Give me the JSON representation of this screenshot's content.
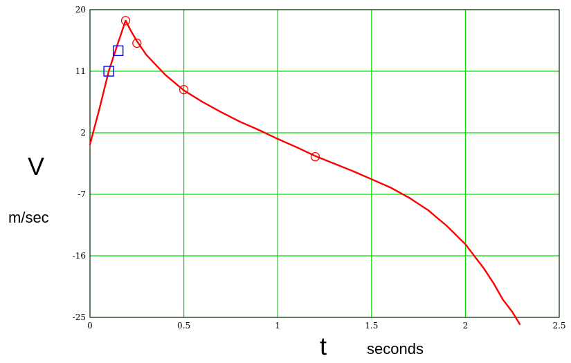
{
  "chart_data": {
    "type": "line",
    "title": "",
    "ylabel": "V",
    "ylabel_unit": "m/sec",
    "xlabel": "t",
    "xlabel_unit": "seconds",
    "xlim": [
      0,
      2.5
    ],
    "ylim": [
      -25,
      20
    ],
    "x_ticks": [
      0,
      0.5,
      1,
      1.5,
      2,
      2.5
    ],
    "x_tick_labels": [
      "0",
      "0.5",
      "1",
      "1.5",
      "2",
      "2.5"
    ],
    "y_ticks": [
      20,
      11,
      2,
      -7,
      -16,
      -25
    ],
    "y_tick_labels": [
      "20",
      "11",
      "2",
      "-7",
      "-16",
      "-25"
    ],
    "grid": true,
    "series": [
      {
        "kind": "curve",
        "color": "#ff0000",
        "x": [
          0,
          0.05,
          0.1,
          0.15,
          0.19,
          0.22,
          0.25,
          0.3,
          0.4,
          0.5,
          0.6,
          0.7,
          0.8,
          0.9,
          1.0,
          1.1,
          1.2,
          1.3,
          1.4,
          1.5,
          1.6,
          1.7,
          1.8,
          1.9,
          2.0,
          2.1,
          2.15,
          2.2,
          2.25,
          2.29
        ],
        "y": [
          0.3,
          5.5,
          11,
          15.2,
          18.4,
          16.8,
          15.4,
          13.4,
          10.5,
          8.2,
          6.5,
          5.0,
          3.6,
          2.4,
          1.1,
          -0.1,
          -1.4,
          -2.5,
          -3.6,
          -4.8,
          -6.0,
          -7.5,
          -9.3,
          -11.6,
          -14.3,
          -17.9,
          -20.0,
          -22.4,
          -24.2,
          -26.0
        ]
      },
      {
        "kind": "points",
        "marker": "circle",
        "color": "#ff0000",
        "x": [
          0.19,
          0.25,
          0.5,
          1.2
        ],
        "y": [
          18.4,
          15.1,
          8.3,
          -1.5
        ]
      },
      {
        "kind": "points",
        "marker": "square",
        "color": "#0000ff",
        "x": [
          0.1,
          0.15
        ],
        "y": [
          11,
          14
        ]
      }
    ]
  }
}
